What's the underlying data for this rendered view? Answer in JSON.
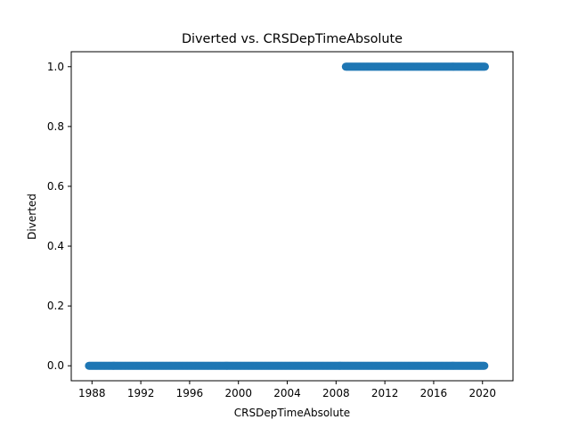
{
  "chart_data": {
    "type": "scatter",
    "title": "Diverted vs. CRSDepTimeAbsolute",
    "xlabel": "CRSDepTimeAbsolute",
    "ylabel": "Diverted",
    "x_tick_labels": [
      "1988",
      "1992",
      "1996",
      "2000",
      "2004",
      "2008",
      "2012",
      "2016",
      "2020"
    ],
    "x_tick_values": [
      1988,
      1992,
      1996,
      2000,
      2004,
      2008,
      2012,
      2016,
      2020
    ],
    "y_tick_labels": [
      "0.0",
      "0.2",
      "0.4",
      "0.6",
      "0.8",
      "1.0"
    ],
    "y_tick_values": [
      0.0,
      0.2,
      0.4,
      0.6,
      0.8,
      1.0
    ],
    "xlim": [
      1986.3,
      2022.5
    ],
    "ylim": [
      -0.05,
      1.05
    ],
    "grid": false,
    "marker_color": "#1f77b4",
    "series": [
      {
        "x_range": [
          1987.75,
          2020.2
        ],
        "y": 0.0
      },
      {
        "x_range": [
          2008.8,
          2020.2
        ],
        "y": 1.0
      }
    ]
  }
}
